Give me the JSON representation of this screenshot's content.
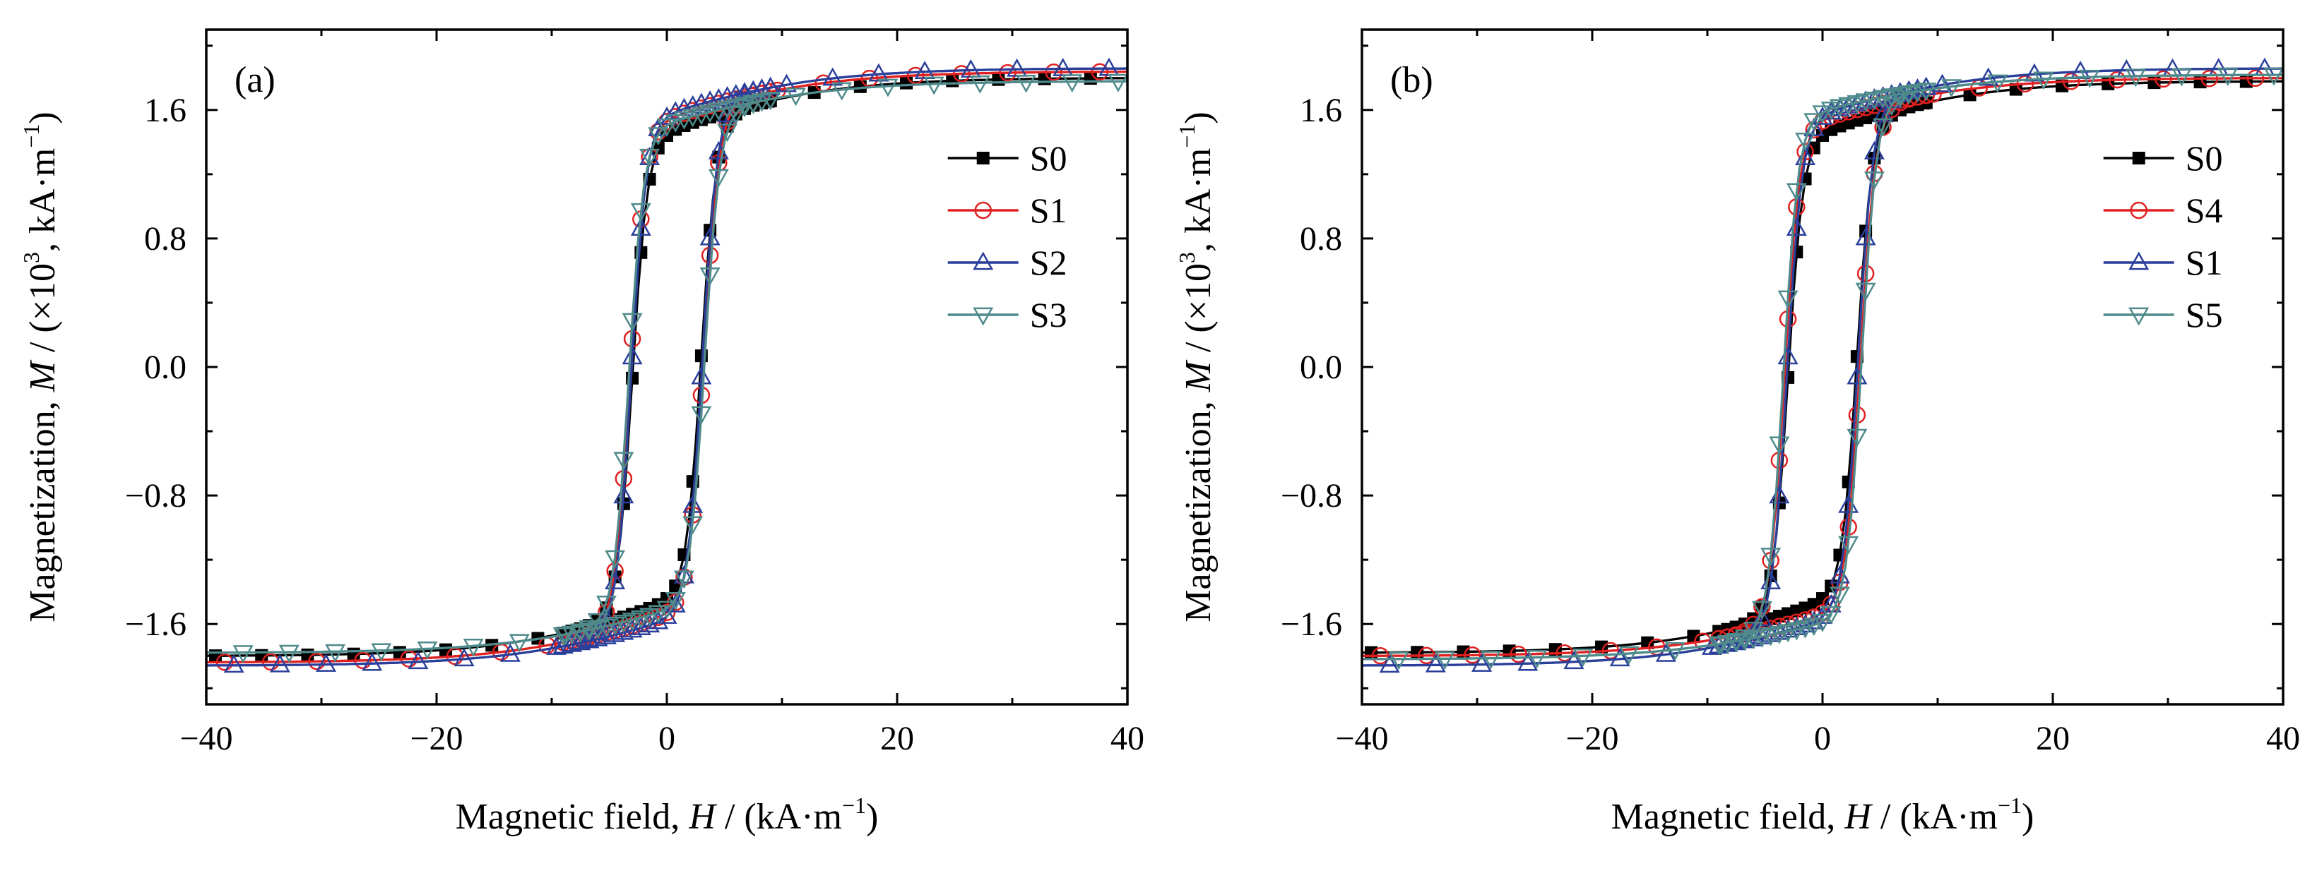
{
  "chart_data": [
    {
      "type": "line",
      "panel_label": "(a)",
      "xlabel_prefix": "Magnetic field, ",
      "xlabel_var": "H",
      "xlabel_unit": " / (kA·m",
      "xlabel_exp": "−1",
      "xlabel_close": ")",
      "ylabel_prefix": "Magnetization, ",
      "ylabel_var": "M",
      "ylabel_unit1": " / (×10",
      "ylabel_exp1": "3",
      "ylabel_unit2": ", kA·m",
      "ylabel_exp2": "−1",
      "ylabel_close": ")",
      "xlim": [
        -40,
        40
      ],
      "ylim": [
        -2.1,
        2.1
      ],
      "xticks": [
        -40,
        -20,
        0,
        20,
        40
      ],
      "xtick_labels": [
        "−40",
        "−20",
        "0",
        "20",
        "40"
      ],
      "yticks": [
        -1.6,
        -0.8,
        0.0,
        0.8,
        1.6
      ],
      "ytick_labels": [
        "−1.6",
        "−0.8",
        "0.0",
        "0.8",
        "1.6"
      ],
      "legend_position": "right",
      "grid": false,
      "series": [
        {
          "name": "S0",
          "color": "#000000",
          "marker": "square-filled",
          "hc": 3.0,
          "ms": 1.8,
          "knee": 1.47,
          "slope": 0.2
        },
        {
          "name": "S1",
          "color": "#e02020",
          "marker": "circle-open",
          "hc": 3.2,
          "ms": 1.84,
          "knee": 1.55,
          "slope": 0.25
        },
        {
          "name": "S2",
          "color": "#2a3f9a",
          "marker": "triangle-up-open",
          "hc": 3.1,
          "ms": 1.86,
          "knee": 1.58,
          "slope": 0.18
        },
        {
          "name": "S3",
          "color": "#4f8a8b",
          "marker": "triangle-down-open",
          "hc": 3.3,
          "ms": 1.78,
          "knee": 1.52,
          "slope": 0.2
        }
      ]
    },
    {
      "type": "line",
      "panel_label": "(b)",
      "xlabel_prefix": "Magnetic field, ",
      "xlabel_var": "H",
      "xlabel_unit": " / (kA·m",
      "xlabel_exp": "−1",
      "xlabel_close": ")",
      "ylabel_prefix": "Magnetization, ",
      "ylabel_var": "M",
      "ylabel_unit1": " / (×10",
      "ylabel_exp1": "3",
      "ylabel_unit2": ", kA·m",
      "ylabel_exp2": "−1",
      "ylabel_close": ")",
      "xlim": [
        -40,
        40
      ],
      "ylim": [
        -2.1,
        2.1
      ],
      "xticks": [
        -40,
        -20,
        0,
        20,
        40
      ],
      "xtick_labels": [
        "−40",
        "−20",
        "0",
        "20",
        "40"
      ],
      "yticks": [
        -1.6,
        -0.8,
        0.0,
        0.8,
        1.6
      ],
      "ytick_labels": [
        "−1.6",
        "−0.8",
        "0.0",
        "0.8",
        "1.6"
      ],
      "legend_position": "right",
      "grid": false,
      "series": [
        {
          "name": "S0",
          "color": "#000000",
          "marker": "square-filled",
          "hc": 3.0,
          "ms": 1.78,
          "knee": 1.47,
          "slope": 0.2
        },
        {
          "name": "S4",
          "color": "#e02020",
          "marker": "circle-open",
          "hc": 3.3,
          "ms": 1.8,
          "knee": 1.55,
          "slope": 0.22
        },
        {
          "name": "S1",
          "color": "#2a3f9a",
          "marker": "triangle-up-open",
          "hc": 3.1,
          "ms": 1.86,
          "knee": 1.58,
          "slope": 0.18
        },
        {
          "name": "S5",
          "color": "#4f8a8b",
          "marker": "triangle-down-open",
          "hc": 3.4,
          "ms": 1.82,
          "knee": 1.6,
          "slope": 0.2
        }
      ]
    }
  ]
}
